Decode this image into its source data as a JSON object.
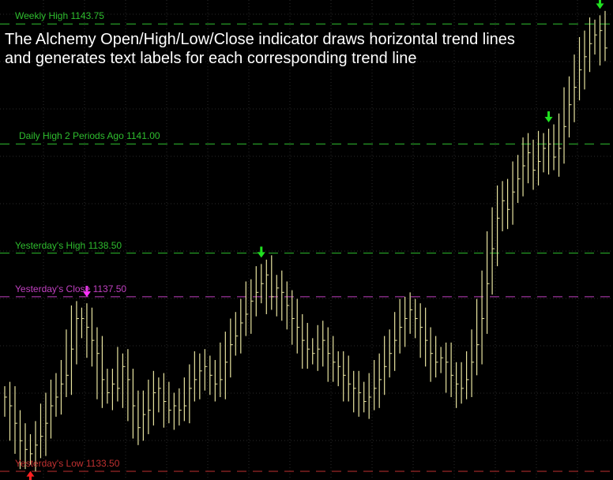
{
  "caption": {
    "line1": "The Alchemy Open/High/Low/Close indicator draws horizontal trend lines",
    "line2": "and generates text labels for each corresponding trend line"
  },
  "colors": {
    "background": "#000000",
    "grid": "#2a2a2a",
    "bars": "#e8e4a0",
    "high_line": "#2ebd2e",
    "close_line": "#c040c0",
    "low_line": "#c03030",
    "up_arrow": "#ff2020",
    "down_arrow_green": "#20e020",
    "down_arrow_magenta": "#ff30ff"
  },
  "chart_data": {
    "type": "ohlc",
    "ylim": [
      1133.3,
      1144.3
    ],
    "levels": [
      {
        "label": "Weekly High 1143.75",
        "value": 1143.75,
        "kind": "high"
      },
      {
        "label": "Daily High 2 Periods Ago 1141.00",
        "value": 1141.0,
        "kind": "high"
      },
      {
        "label": "Yesterday's High 1138.50",
        "value": 1138.5,
        "kind": "high"
      },
      {
        "label": "Yesterday's Close 1137.50",
        "value": 1137.5,
        "kind": "close"
      },
      {
        "label": "Yesterday's Low 1133.50",
        "value": 1133.5,
        "kind": "low"
      }
    ],
    "close": [
      1135.2,
      1135.0,
      1134.6,
      1134.2,
      1134.0,
      1133.9,
      1134.1,
      1134.3,
      1134.6,
      1135.0,
      1135.2,
      1135.5,
      1135.7,
      1136.3,
      1137.0,
      1137.0,
      1136.8,
      1136.5,
      1136.2,
      1135.6,
      1135.3,
      1135.5,
      1135.4,
      1135.9,
      1135.6,
      1135.0,
      1134.5,
      1134.8,
      1134.9,
      1135.3,
      1135.4,
      1135.1,
      1134.9,
      1135.0,
      1134.9,
      1135.0,
      1135.4,
      1135.6,
      1135.8,
      1135.9,
      1135.7,
      1135.5,
      1135.6,
      1136.0,
      1136.4,
      1136.6,
      1136.9,
      1137.1,
      1137.4,
      1137.6,
      1137.8,
      1138.0,
      1137.5,
      1137.7,
      1137.6,
      1137.3,
      1137.0,
      1136.8,
      1136.5,
      1136.3,
      1136.2,
      1136.3,
      1136.5,
      1136.2,
      1136.0,
      1135.9,
      1135.7,
      1135.5,
      1135.4,
      1135.3,
      1135.1,
      1135.2,
      1135.4,
      1135.6,
      1135.9,
      1136.2,
      1136.5,
      1136.8,
      1137.0,
      1137.2,
      1137.0,
      1136.8,
      1136.5,
      1136.2,
      1136.0,
      1136.1,
      1136.0,
      1135.7,
      1135.5,
      1135.4,
      1135.6,
      1136.0,
      1136.4,
      1137.0,
      1137.8,
      1138.6,
      1139.3,
      1139.7,
      1139.5,
      1139.9,
      1140.2,
      1140.5,
      1140.8,
      1140.4,
      1140.6,
      1140.9,
      1141.0,
      1140.7,
      1140.9,
      1141.4,
      1141.9,
      1142.3,
      1142.7,
      1143.0,
      1143.3,
      1143.5,
      1143.6,
      1143.2
    ],
    "arrows": [
      {
        "type": "up",
        "bar": 5,
        "at": "low",
        "color": "up_arrow"
      },
      {
        "type": "down",
        "bar": 16,
        "at": "high",
        "color": "down_arrow_magenta"
      },
      {
        "type": "down",
        "bar": 50,
        "at": "high",
        "color": "down_arrow_green"
      },
      {
        "type": "down",
        "bar": 106,
        "at": "high",
        "color": "down_arrow_green"
      },
      {
        "type": "down",
        "bar": 116,
        "at": "high",
        "color": "down_arrow_green"
      }
    ],
    "grid": true,
    "axes_visible": false
  }
}
